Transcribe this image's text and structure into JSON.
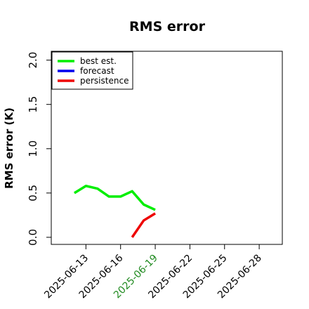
{
  "chart_data": {
    "type": "line",
    "title": "RMS error",
    "ylabel": "RMS error (K)",
    "x": [
      "2025-06-12",
      "2025-06-13",
      "2025-06-14",
      "2025-06-15",
      "2025-06-16",
      "2025-06-17",
      "2025-06-18",
      "2025-06-19"
    ],
    "series": [
      {
        "name": "best est.",
        "color": "#00ee00",
        "values": [
          0.5,
          0.58,
          0.55,
          0.46,
          0.46,
          0.52,
          0.37,
          0.31
        ]
      },
      {
        "name": "forecast",
        "color": "#0000ee",
        "values": [
          null,
          null,
          null,
          null,
          null,
          null,
          null,
          null
        ]
      },
      {
        "name": "persistence",
        "color": "#ee0000",
        "values": [
          null,
          null,
          null,
          null,
          null,
          0.0,
          0.19,
          0.27
        ]
      }
    ],
    "xlim": [
      "2025-06-10",
      "2025-06-30"
    ],
    "xticks": [
      "2025-06-13",
      "2025-06-16",
      "2025-06-19",
      "2025-06-22",
      "2025-06-25",
      "2025-06-28"
    ],
    "xtick_colors": [
      "#000000",
      "#000000",
      "#228b22",
      "#000000",
      "#000000",
      "#000000"
    ],
    "ylim": [
      -0.08,
      2.1
    ],
    "yticks": [
      {
        "value": 0,
        "label": "0.0"
      },
      {
        "value": 0.5,
        "label": "0.5"
      },
      {
        "value": 1,
        "label": "1.0"
      },
      {
        "value": 1.5,
        "label": "1.5"
      },
      {
        "value": 2,
        "label": "2.0"
      }
    ],
    "legend": "top-left",
    "grid": false
  }
}
